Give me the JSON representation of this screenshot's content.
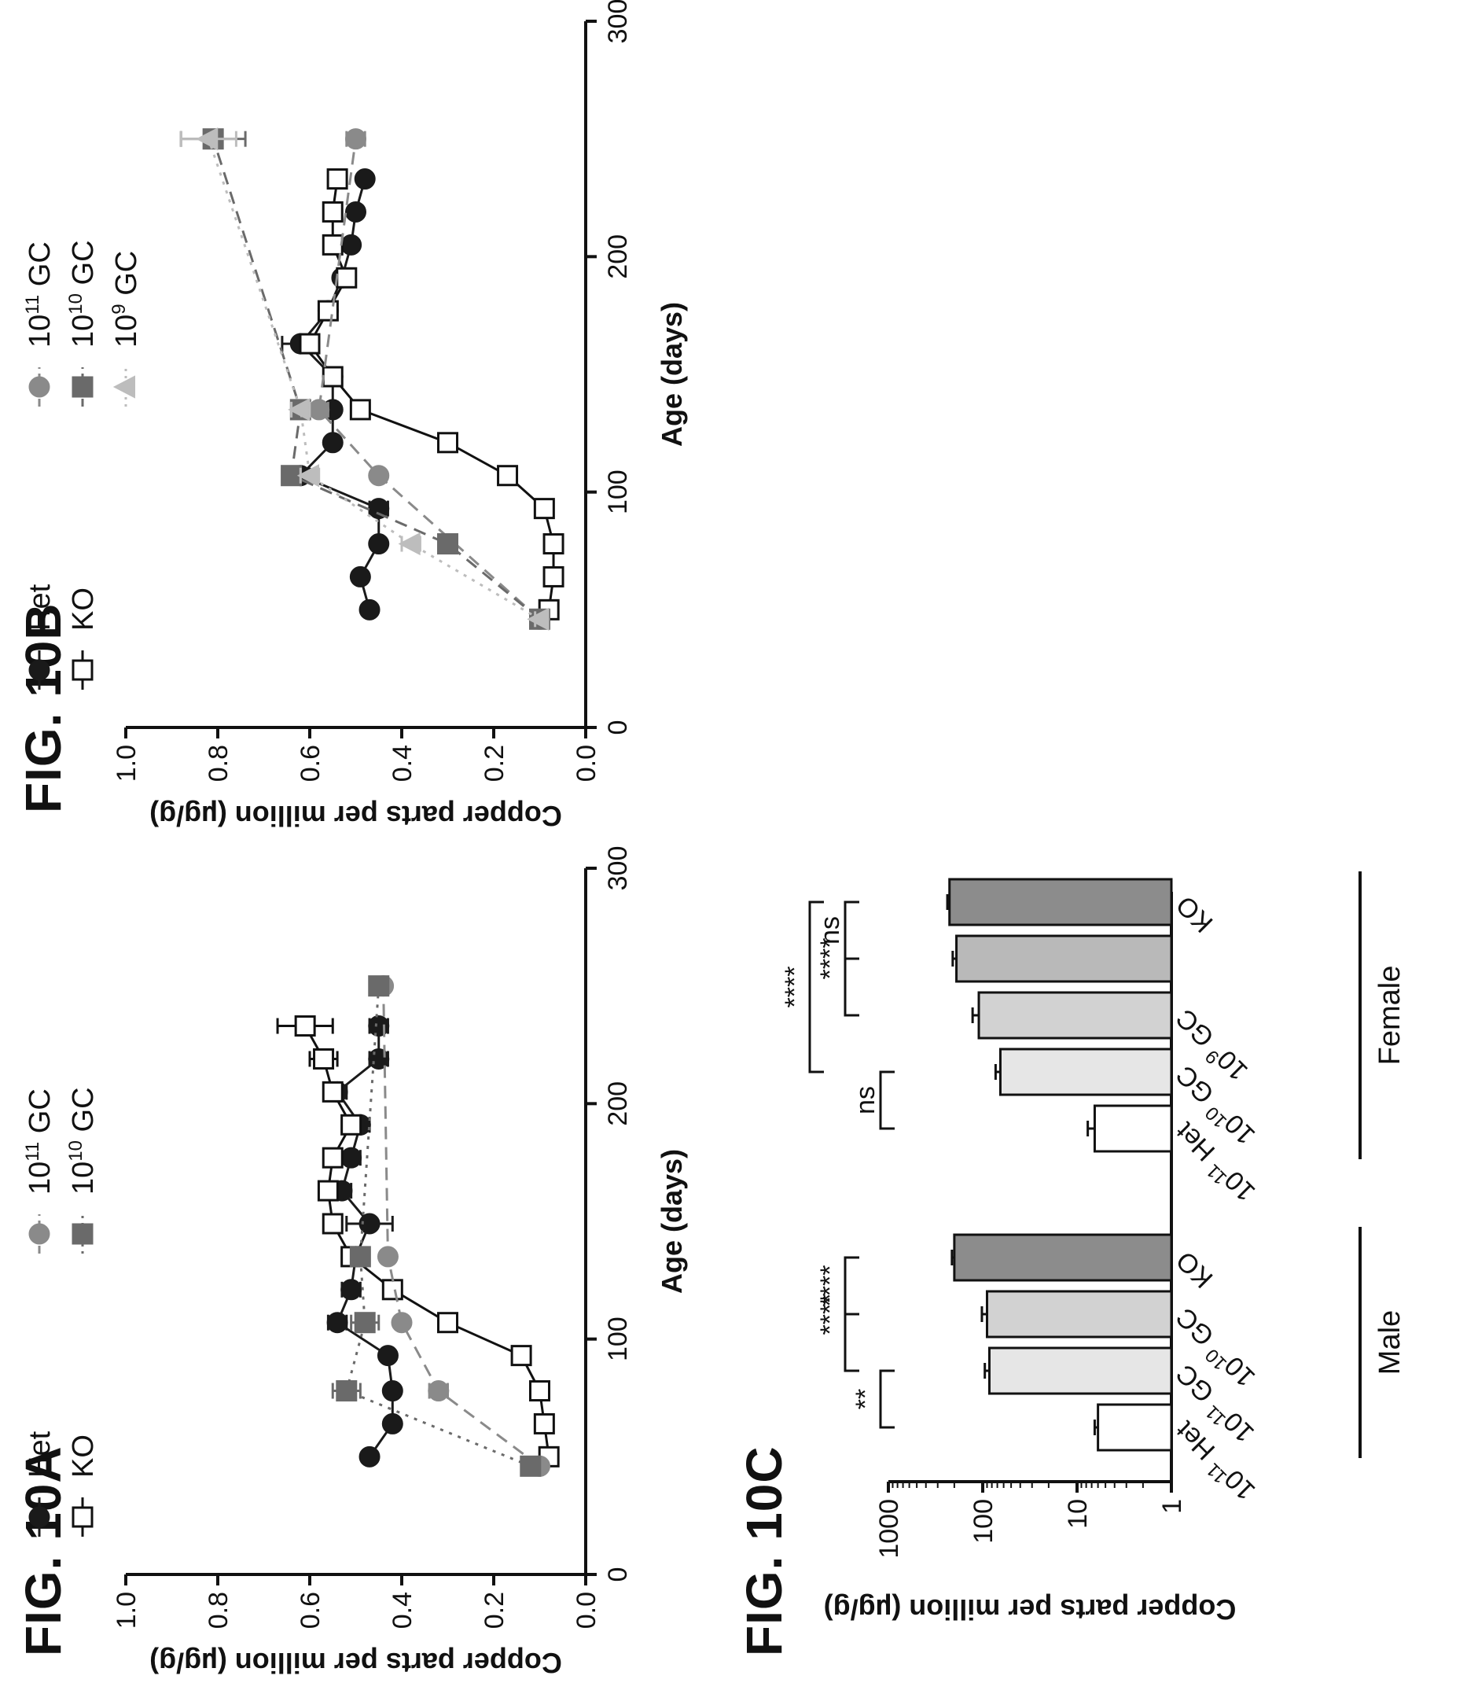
{
  "figures": {
    "a": {
      "title": "FIG. 10A"
    },
    "b": {
      "title": "FIG. 10B"
    },
    "c": {
      "title": "FIG. 10C"
    }
  },
  "colors": {
    "het": "#1a1a1a",
    "ko_face": "#ffffff",
    "g11": "#8a8a8a",
    "g10": "#6a6a6a",
    "g9": "#bdbdbd",
    "bar_het": "#ffffff",
    "bar_11": "#e6e6e6",
    "bar_10": "#d2d2d2",
    "bar_9": "#b9b9b9",
    "bar_ko": "#8c8c8c"
  },
  "chart_data": [
    {
      "id": "a",
      "type": "line",
      "xlabel": "Age (days)",
      "ylabel": "Copper parts per million (µg/g)",
      "xlim": [
        0,
        300
      ],
      "ylim": [
        0.0,
        1.0
      ],
      "xticks": [
        "0",
        "100",
        "200",
        "300"
      ],
      "yticks": [
        "0.0",
        "0.2",
        "0.4",
        "0.6",
        "0.8",
        "1.0"
      ],
      "legend": [
        {
          "key": "het",
          "label": "Het"
        },
        {
          "key": "ko",
          "label": "KO"
        },
        {
          "key": "g11",
          "label_base": "10",
          "label_sup": "11",
          "label_suffix": " GC"
        },
        {
          "key": "g10",
          "label_base": "10",
          "label_sup": "10",
          "label_suffix": " GC"
        }
      ],
      "series": [
        {
          "key": "het",
          "name": "Het",
          "marker": "circle",
          "line": "solid",
          "x": [
            50,
            64,
            78,
            93,
            107,
            121,
            135,
            149,
            163,
            177,
            191,
            205,
            219,
            233
          ],
          "y": [
            0.47,
            0.42,
            0.42,
            0.43,
            0.54,
            0.51,
            0.5,
            0.47,
            0.53,
            0.51,
            0.49,
            0.54,
            0.45,
            0.45
          ],
          "err": [
            0.01,
            0.01,
            0.01,
            0.01,
            0.02,
            0.02,
            0.02,
            0.05,
            0.02,
            0.02,
            0.02,
            0.02,
            0.02,
            0.02
          ]
        },
        {
          "key": "ko",
          "name": "KO",
          "marker": "square",
          "line": "solid",
          "x": [
            50,
            64,
            78,
            93,
            107,
            121,
            135,
            149,
            163,
            177,
            191,
            205,
            219,
            233
          ],
          "y": [
            0.08,
            0.09,
            0.1,
            0.14,
            0.3,
            0.42,
            0.51,
            0.55,
            0.56,
            0.55,
            0.51,
            0.55,
            0.57,
            0.61
          ],
          "err": [
            0.01,
            0.01,
            0.01,
            0.01,
            0.02,
            0.02,
            0.02,
            0.02,
            0.02,
            0.02,
            0.02,
            0.02,
            0.03,
            0.06
          ]
        },
        {
          "key": "g11",
          "name": "10^11 GC",
          "marker": "circle",
          "line": "dashed",
          "x": [
            46,
            78,
            107,
            135,
            250
          ],
          "y": [
            0.1,
            0.32,
            0.4,
            0.43,
            0.44
          ],
          "err": [
            0.01,
            0.02,
            0.01,
            0.01,
            0.01
          ]
        },
        {
          "key": "g10",
          "name": "10^10 GC",
          "marker": "square",
          "line": "dotted",
          "x": [
            46,
            78,
            107,
            135,
            250
          ],
          "y": [
            0.12,
            0.52,
            0.48,
            0.49,
            0.45
          ],
          "err": [
            0.01,
            0.03,
            0.03,
            0.02,
            0.01
          ]
        }
      ]
    },
    {
      "id": "b",
      "type": "line",
      "xlabel": "Age (days)",
      "ylabel": "Copper parts per million (µg/g)",
      "xlim": [
        0,
        300
      ],
      "ylim": [
        0.0,
        1.0
      ],
      "xticks": [
        "0",
        "100",
        "200",
        "300"
      ],
      "yticks": [
        "0.0",
        "0.2",
        "0.4",
        "0.6",
        "0.8",
        "1.0"
      ],
      "legend": [
        {
          "key": "het",
          "label": "Het"
        },
        {
          "key": "ko",
          "label": "KO"
        },
        {
          "key": "g11",
          "label_base": "10",
          "label_sup": "11",
          "label_suffix": " GC"
        },
        {
          "key": "g10",
          "label_base": "10",
          "label_sup": "10",
          "label_suffix": " GC"
        },
        {
          "key": "g9",
          "label_base": "10",
          "label_sup": "9",
          "label_suffix": " GC"
        }
      ],
      "series": [
        {
          "key": "het",
          "name": "Het",
          "marker": "circle",
          "line": "solid",
          "x": [
            50,
            64,
            78,
            93,
            107,
            121,
            135,
            149,
            163,
            177,
            191,
            205,
            219,
            233
          ],
          "y": [
            0.47,
            0.49,
            0.45,
            0.45,
            0.62,
            0.55,
            0.55,
            0.55,
            0.62,
            0.56,
            0.53,
            0.51,
            0.5,
            0.48
          ],
          "err": [
            0.01,
            0.01,
            0.01,
            0.02,
            0.02,
            0.01,
            0.01,
            0.01,
            0.04,
            0.01,
            0.01,
            0.01,
            0.01,
            0.01
          ]
        },
        {
          "key": "ko",
          "name": "KO",
          "marker": "square",
          "line": "solid",
          "x": [
            50,
            64,
            78,
            93,
            107,
            121,
            135,
            149,
            163,
            177,
            191,
            205,
            219,
            233
          ],
          "y": [
            0.08,
            0.07,
            0.07,
            0.09,
            0.17,
            0.3,
            0.49,
            0.55,
            0.6,
            0.56,
            0.52,
            0.55,
            0.55,
            0.54
          ],
          "err": [
            0.01,
            0.01,
            0.01,
            0.01,
            0.01,
            0.02,
            0.02,
            0.01,
            0.02,
            0.01,
            0.01,
            0.01,
            0.01,
            0.01
          ]
        },
        {
          "key": "g11",
          "name": "10^11 GC",
          "marker": "circle",
          "line": "dashed",
          "x": [
            46,
            107,
            135,
            250
          ],
          "y": [
            0.1,
            0.45,
            0.58,
            0.5
          ],
          "err": [
            0.01,
            0.01,
            0.02,
            0.02
          ]
        },
        {
          "key": "g10",
          "name": "10^10 GC",
          "marker": "square",
          "line": "dashed",
          "x": [
            46,
            78,
            107,
            135,
            250
          ],
          "y": [
            0.1,
            0.3,
            0.64,
            0.62,
            0.81
          ],
          "err": [
            0.01,
            0.02,
            0.02,
            0.02,
            0.07
          ]
        },
        {
          "key": "g9",
          "name": "10^9 GC",
          "marker": "triangle",
          "line": "dotted",
          "x": [
            46,
            78,
            107,
            135,
            250
          ],
          "y": [
            0.1,
            0.38,
            0.6,
            0.62,
            0.82
          ],
          "err": [
            0.01,
            0.02,
            0.02,
            0.02,
            0.06
          ]
        }
      ]
    },
    {
      "id": "c",
      "type": "bar",
      "ylabel": "Copper parts per million (µg/g)",
      "yscale": "log",
      "ylim": [
        1,
        1000
      ],
      "yticks": [
        "1",
        "10",
        "100",
        "1000"
      ],
      "groups": [
        {
          "label": "Male",
          "bars": [
            {
              "key": "bar_het",
              "label_base": "10",
              "label_sup": "11",
              "label_word": "Het",
              "value": 6,
              "err": 0.5
            },
            {
              "key": "bar_11",
              "label_base": "10",
              "label_sup": "11",
              "label_word": "GC",
              "value": 85,
              "err": 10
            },
            {
              "key": "bar_10",
              "label_base": "10",
              "label_sup": "10",
              "label_word": "GC",
              "value": 90,
              "err": 12
            },
            {
              "key": "bar_ko",
              "label": "KO",
              "value": 200,
              "err": 12
            }
          ]
        },
        {
          "label": "Female",
          "bars": [
            {
              "key": "bar_het",
              "label_base": "10",
              "label_sup": "11",
              "label_word": "Het",
              "value": 6.5,
              "err": 1.2
            },
            {
              "key": "bar_11",
              "label_base": "10",
              "label_sup": "10",
              "label_word": "GC",
              "value": 65,
              "err": 8
            },
            {
              "key": "bar_10",
              "label_base": "10",
              "label_sup": "9",
              "label_word": "GC",
              "value": 110,
              "err": 18
            },
            {
              "key": "bar_9",
              "label": "",
              "value": 190,
              "err": 18
            },
            {
              "key": "bar_ko",
              "label": "KO",
              "value": 225,
              "err": 12
            }
          ]
        }
      ],
      "significance": [
        {
          "group": 0,
          "from": 0,
          "to": 1,
          "label": "**"
        },
        {
          "group": 0,
          "from": 1,
          "to": 3,
          "label": "****"
        },
        {
          "group": 0,
          "from": 2,
          "to": 3,
          "label": "****"
        },
        {
          "group": 1,
          "from": 0,
          "to": 1,
          "label": "ns"
        },
        {
          "group": 1,
          "from": 1,
          "to": 4,
          "label": "****"
        },
        {
          "group": 1,
          "from": 2,
          "to": 4,
          "label": "****"
        },
        {
          "group": 1,
          "from": 3,
          "to": 4,
          "label": "ns"
        }
      ]
    }
  ]
}
